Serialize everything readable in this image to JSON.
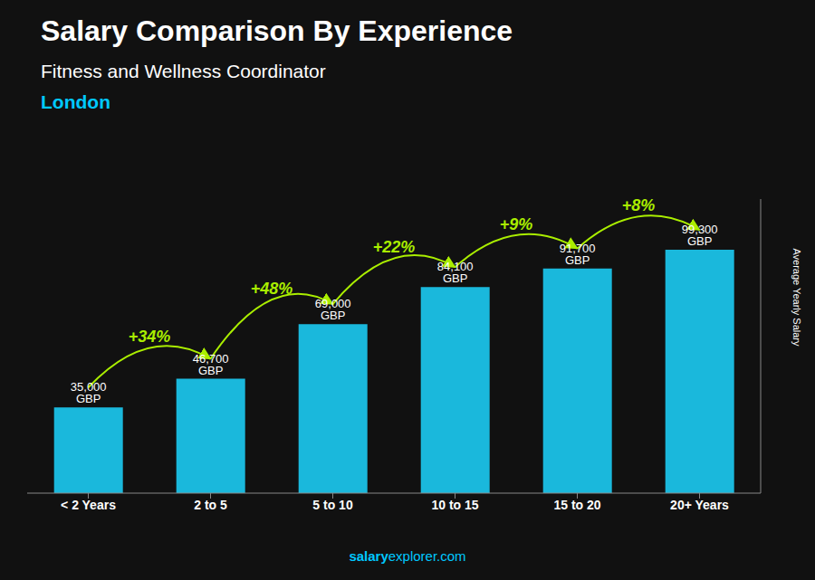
{
  "chart_data": {
    "type": "bar",
    "title": "Salary Comparison By Experience",
    "subtitle": "Fitness and Wellness Coordinator",
    "y_label": "Average Yearly Salary",
    "categories": [
      "< 2 Years",
      "2 to 5",
      "5 to 10",
      "10 to 15",
      "15 to 20",
      "20+ Years"
    ],
    "values": [
      35000,
      46700,
      69000,
      84100,
      91700,
      99300
    ],
    "value_labels": [
      "35,000 GBP",
      "46,700 GBP",
      "69,000 GBP",
      "84,100 GBP",
      "91,700 GBP",
      "99,300 GBP"
    ],
    "data_labels": true,
    "color": "#1AB8DC",
    "ylim": [
      0,
      120000
    ],
    "tick_labels": "x",
    "grid": false,
    "annotations": [
      {
        "text": "London",
        "color": "#00C8FF"
      },
      {
        "text": "salary",
        "color": "#00C8FF"
      },
      {
        "text": "explorer.com",
        "color": "#00C8FF"
      },
      {
        "text": "+34%",
        "from": "< 2 Years",
        "to": "2 to 5",
        "color": "#AAEE00"
      },
      {
        "text": "+48%",
        "from": "2 to 5",
        "to": "5 to 10",
        "color": "#AAEE00"
      },
      {
        "text": "+22%",
        "from": "5 to 10",
        "to": "10 to 15",
        "color": "#AAEE00"
      },
      {
        "text": "+9%",
        "from": "10 to 15",
        "to": "15 to 20",
        "color": "#AAEE00"
      },
      {
        "text": "+8%",
        "from": "15 to 20",
        "to": "20+ Years",
        "color": "#AAEE00"
      }
    ]
  }
}
